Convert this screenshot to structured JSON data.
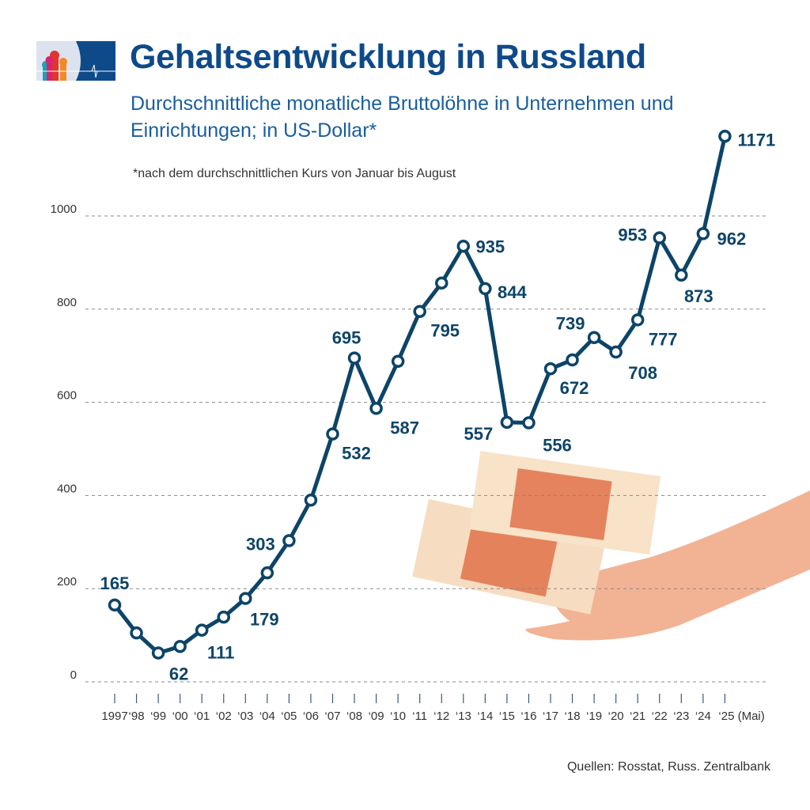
{
  "header": {
    "title": "Gehaltsentwicklung in Russland",
    "subtitle": "Durchschnittliche monatliche Bruttolöhne in Unternehmen und Einrichtungen; in US-Dollar*",
    "note": "*nach dem durchschnittlichen Kurs von Januar bis August",
    "source": "Quellen: Rosstat, Russ. Zentralbank"
  },
  "colors": {
    "line": "#0d4468",
    "title": "#0e4a8a",
    "grid": "#888888",
    "text": "#0d4468"
  },
  "chart_data": {
    "type": "line",
    "title": "Gehaltsentwicklung in Russland",
    "ylim": [
      0,
      1000
    ],
    "yticks": [
      "0",
      "200",
      "400",
      "600",
      "800",
      "1000"
    ],
    "grid": "horizontal dashed",
    "x_labels": [
      "1997",
      "‘98",
      "‘99",
      "‘00",
      "‘01",
      "‘02",
      "‘03",
      "‘04",
      "‘05",
      "‘06",
      "‘07",
      "‘08",
      "‘09",
      "‘10",
      "‘11",
      "‘12",
      "‘13",
      "‘14",
      "‘15",
      "‘16",
      "‘17",
      "‘18",
      "‘19",
      "‘20",
      "‘21",
      "‘22",
      "‘23",
      "‘24",
      "‘25 (Mai)"
    ],
    "x": [
      1997,
      1998,
      1999,
      2000,
      2001,
      2002,
      2003,
      2004,
      2005,
      2006,
      2007,
      2008,
      2009,
      2010,
      2011,
      2012,
      2013,
      2014,
      2015,
      2016,
      2017,
      2018,
      2019,
      2020,
      2021,
      2022,
      2023,
      2024,
      2025
    ],
    "values": [
      165,
      105,
      62,
      76,
      111,
      139,
      179,
      234,
      303,
      390,
      532,
      695,
      587,
      688,
      795,
      856,
      935,
      844,
      557,
      556,
      672,
      691,
      739,
      708,
      777,
      953,
      873,
      962,
      1171
    ],
    "data_labels": {
      "1997": "165",
      "1999": "62",
      "2001": "111",
      "2003": "179",
      "2005": "303",
      "2007": "532",
      "2008": "695",
      "2009": "587",
      "2011": "795",
      "2013": "935",
      "2014": "844",
      "2015": "557",
      "2016": "556",
      "2017": "672",
      "2019": "739",
      "2020": "708",
      "2021": "777",
      "2022": "953",
      "2023": "873",
      "2024": "962",
      "2025": "1171"
    }
  }
}
